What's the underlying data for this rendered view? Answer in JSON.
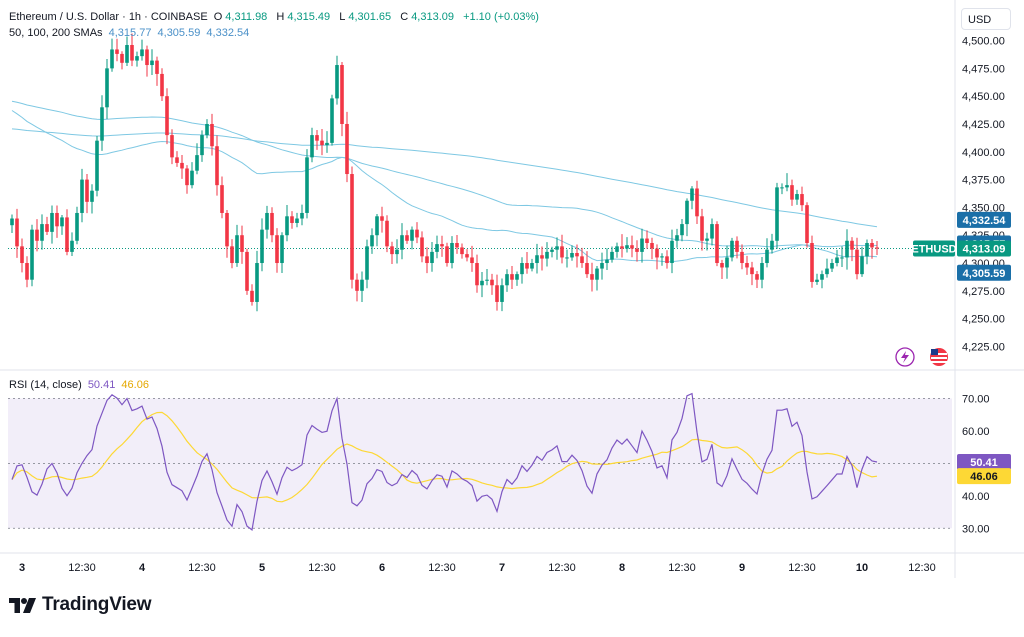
{
  "header": {
    "symbol": "Ethereum / U.S. Dollar · 1h · COINBASE",
    "open_label": "O",
    "open": "4,311.98",
    "high_label": "H",
    "high": "4,315.49",
    "low_label": "L",
    "low": "4,301.65",
    "close_label": "C",
    "close": "4,313.09",
    "change": "+1.10 (+0.03%)",
    "sma_label": "50, 100, 200 SMAs",
    "sma50": "4,315.77",
    "sma100": "4,305.59",
    "sma200": "4,332.54"
  },
  "rsi_header": {
    "label": "RSI (14, close)",
    "rsi": "50.41",
    "ma": "46.06"
  },
  "currency": "USD",
  "brand": "TradingView",
  "colors": {
    "up": "#089981",
    "down": "#f23645",
    "sma": "#7ec8e3",
    "rsi": "#7e57c2",
    "rsi_ma": "#fdd835",
    "rsi_band": "#ede7f6"
  },
  "chart_data": [
    {
      "type": "candlestick",
      "symbol": "ETHUSD",
      "timeframe": "1h",
      "ylim": [
        4220,
        4505
      ],
      "price_ticks": [
        4225,
        4250,
        4275,
        4300,
        4325,
        4350,
        4375,
        4400,
        4425,
        4450,
        4475,
        4500
      ],
      "x_ticks": [
        {
          "i": 2,
          "label": "3"
        },
        {
          "i": 14,
          "label": "12:30"
        },
        {
          "i": 26,
          "label": "4"
        },
        {
          "i": 38,
          "label": "12:30"
        },
        {
          "i": 50,
          "label": "5"
        },
        {
          "i": 62,
          "label": "12:30"
        },
        {
          "i": 74,
          "label": "6"
        },
        {
          "i": 86,
          "label": "12:30"
        },
        {
          "i": 98,
          "label": "7"
        },
        {
          "i": 110,
          "label": "12:30"
        },
        {
          "i": 122,
          "label": "8"
        },
        {
          "i": 134,
          "label": "12:30"
        },
        {
          "i": 146,
          "label": "9"
        },
        {
          "i": 158,
          "label": "12:30"
        },
        {
          "i": 170,
          "label": "10"
        },
        {
          "i": 182,
          "label": "12:30"
        }
      ],
      "price_closes": [
        4340,
        4315,
        4300,
        4285,
        4330,
        4320,
        4335,
        4328,
        4345,
        4333,
        4341,
        4310,
        4320,
        4345,
        4375,
        4355,
        4365,
        4410,
        4440,
        4475,
        4492,
        4488,
        4480,
        4496,
        4482,
        4486,
        4492,
        4478,
        4482,
        4470,
        4450,
        4415,
        4395,
        4390,
        4385,
        4370,
        4383,
        4397,
        4415,
        4425,
        4405,
        4370,
        4345,
        4315,
        4300,
        4325,
        4310,
        4275,
        4265,
        4300,
        4330,
        4345,
        4325,
        4300,
        4325,
        4342,
        4336,
        4340,
        4345,
        4395,
        4415,
        4410,
        4406,
        4408,
        4448,
        4478,
        4425,
        4380,
        4285,
        4275,
        4285,
        4315,
        4325,
        4342,
        4338,
        4315,
        4308,
        4312,
        4325,
        4320,
        4330,
        4323,
        4306,
        4300,
        4310,
        4317,
        4315,
        4300,
        4318,
        4314,
        4308,
        4305,
        4300,
        4280,
        4284,
        4285,
        4280,
        4265,
        4280,
        4290,
        4285,
        4290,
        4300,
        4295,
        4300,
        4307,
        4304,
        4310,
        4312,
        4315,
        4305,
        4305,
        4309,
        4306,
        4300,
        4290,
        4285,
        4295,
        4300,
        4303,
        4310,
        4315,
        4313,
        4316,
        4313,
        4310,
        4322,
        4318,
        4313,
        4305,
        4306,
        4300,
        4320,
        4325,
        4335,
        4356,
        4367,
        4342,
        4320,
        4322,
        4335,
        4300,
        4296,
        4305,
        4320,
        4310,
        4300,
        4296,
        4290,
        4285,
        4300,
        4312,
        4320,
        4368,
        4368,
        4370,
        4357,
        4362,
        4352,
        4318,
        4283,
        4285,
        4290,
        4295,
        4300,
        4305,
        4305,
        4320,
        4312,
        4290,
        4306,
        4318,
        4314,
        4313
      ],
      "sma_50_last": 4315.77,
      "sma_100_last": 4305.59,
      "sma_200_last": 4332.54,
      "last_price": 4313.09,
      "labels": {
        "symbol_tag": "ETHUSD",
        "last": "4,313.09",
        "sma50": "4,315.77",
        "sma100": "4,305.59",
        "sma200": "4,332.54"
      }
    },
    {
      "type": "line",
      "title": "RSI (14, close)",
      "ylim": [
        27,
        72
      ],
      "y_ticks": [
        30,
        40,
        50,
        60,
        70
      ],
      "band": [
        30,
        70
      ],
      "series": [
        {
          "name": "RSI",
          "last": 50.41
        },
        {
          "name": "RSI MA",
          "last": 46.06
        }
      ],
      "labels": {
        "rsi": "50.41",
        "ma": "46.06"
      }
    }
  ]
}
